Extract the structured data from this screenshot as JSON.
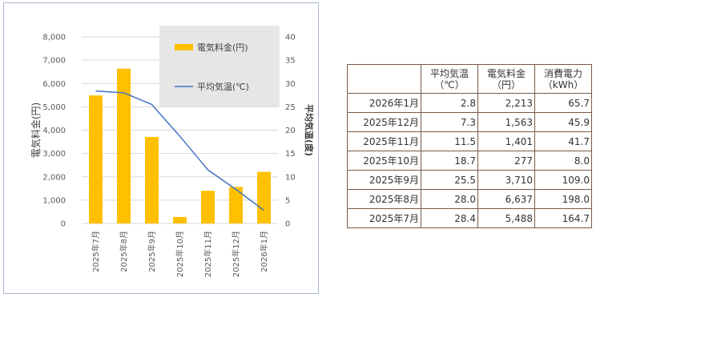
{
  "chart_data": {
    "type": "bar+line",
    "categories": [
      "2025年7月",
      "2025年8月",
      "2025年9月",
      "2025年10月",
      "2025年11月",
      "2025年12月",
      "2026年1月"
    ],
    "series": [
      {
        "name": "電気料金(円)",
        "type": "bar",
        "axis": "left",
        "color": "#ffc000",
        "values": [
          5488,
          6637,
          3710,
          277,
          1401,
          1563,
          2213
        ]
      },
      {
        "name": "平均気温(℃)",
        "type": "line",
        "axis": "right",
        "color": "#4472c4",
        "values": [
          28.4,
          28.0,
          25.5,
          18.7,
          11.5,
          7.3,
          2.8
        ]
      }
    ],
    "ylabel": "電気料金(円)",
    "y2label": "平均気温(度)",
    "ylim": [
      0,
      8000
    ],
    "yticks": [
      "0",
      "1,000",
      "2,000",
      "3,000",
      "4,000",
      "5,000",
      "6,000",
      "7,000",
      "8,000"
    ],
    "y2lim": [
      0,
      40
    ],
    "y2ticks": [
      "0",
      "5",
      "10",
      "15",
      "20",
      "25",
      "30",
      "35",
      "40"
    ],
    "legend_position": "top-right"
  },
  "table": {
    "headers": [
      {
        "line1": "",
        "line2": ""
      },
      {
        "line1": "平均気温",
        "line2": "（℃）"
      },
      {
        "line1": "電気料金",
        "line2": "（円）"
      },
      {
        "line1": "消費電力",
        "line2": "（kWh）"
      }
    ],
    "rows": [
      {
        "month": "2026年1月",
        "temp": "2.8",
        "fee": "2,213",
        "power": "65.7"
      },
      {
        "month": "2025年12月",
        "temp": "7.3",
        "fee": "1,563",
        "power": "45.9"
      },
      {
        "month": "2025年11月",
        "temp": "11.5",
        "fee": "1,401",
        "power": "41.7"
      },
      {
        "month": "2025年10月",
        "temp": "18.7",
        "fee": "277",
        "power": "8.0"
      },
      {
        "month": "2025年9月",
        "temp": "25.5",
        "fee": "3,710",
        "power": "109.0"
      },
      {
        "month": "2025年8月",
        "temp": "28.0",
        "fee": "6,637",
        "power": "198.0"
      },
      {
        "month": "2025年7月",
        "temp": "28.4",
        "fee": "5,488",
        "power": "164.7"
      }
    ]
  }
}
